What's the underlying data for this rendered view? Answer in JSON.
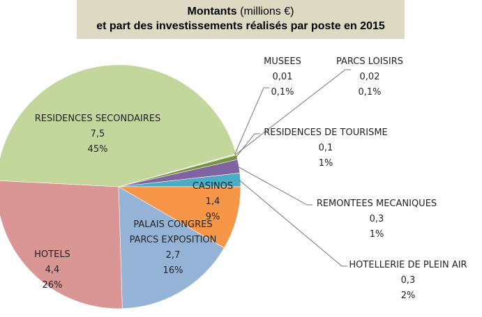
{
  "chart_data": {
    "type": "pie",
    "title": "Montants",
    "title_unit": "(millions €)",
    "subtitle": "et part des investissements réalisés par poste en 2015",
    "categories": [
      "MUSEES",
      "PARCS LOISIRS",
      "RESIDENCES DE TOURISME",
      "REMONTEES MECANIQUES",
      "HOTELLERIE DE PLEIN AIR",
      "CASINOS",
      "PALAIS CONGRES PARCS EXPOSITION",
      "HOTELS",
      "RESIDENCES SECONDAIRES"
    ],
    "values": [
      0.01,
      0.02,
      0.1,
      0.3,
      0.3,
      1.4,
      2.7,
      4.4,
      7.5
    ],
    "value_labels": [
      "0,01",
      "0,02",
      "0,1",
      "0,3",
      "0,3",
      "1,4",
      "2,7",
      "4,4",
      "7,5"
    ],
    "percent_labels": [
      "0,1%",
      "0,1%",
      "1%",
      "1%",
      "2%",
      "9%",
      "16%",
      "26%",
      "45%"
    ],
    "colors": [
      "#c4bd97",
      "#9bbb59",
      "#77933c",
      "#8064a2",
      "#4bacc6",
      "#f79646",
      "#95b3d7",
      "#d99694",
      "#c3d69b"
    ]
  }
}
